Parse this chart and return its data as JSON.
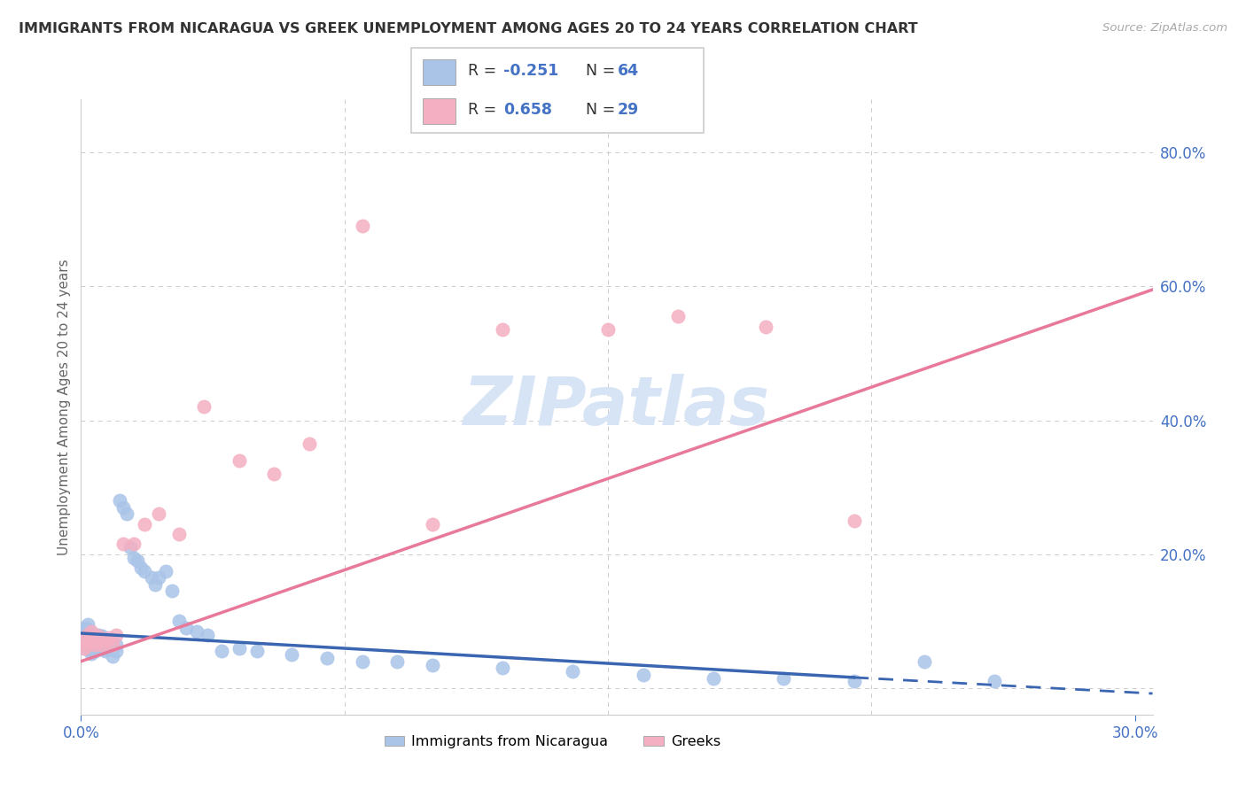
{
  "title": "IMMIGRANTS FROM NICARAGUA VS GREEK UNEMPLOYMENT AMONG AGES 20 TO 24 YEARS CORRELATION CHART",
  "source": "Source: ZipAtlas.com",
  "ylabel": "Unemployment Among Ages 20 to 24 years",
  "ytick_vals": [
    0.0,
    0.2,
    0.4,
    0.6,
    0.8
  ],
  "ytick_labels": [
    "",
    "20.0%",
    "40.0%",
    "60.0%",
    "80.0%"
  ],
  "xtick_vals": [
    0.0,
    0.3
  ],
  "xtick_labels": [
    "0.0%",
    "30.0%"
  ],
  "xlim": [
    0.0,
    0.305
  ],
  "ylim": [
    -0.04,
    0.88
  ],
  "legend_r_blue": "-0.251",
  "legend_n_blue": "64",
  "legend_r_pink": "0.658",
  "legend_n_pink": "29",
  "legend_label_blue": "Immigrants from Nicaragua",
  "legend_label_pink": "Greeks",
  "blue_dot_color": "#aac4e8",
  "pink_dot_color": "#f5afc2",
  "blue_line_color": "#3a65b0",
  "pink_line_color": "#e8799a",
  "r_n_color": "#4472c4",
  "title_color": "#333333",
  "axis_tick_color": "#4472c4",
  "source_color": "#aaaaaa",
  "grid_color": "#cccccc",
  "watermark_color": "#d6e4f5",
  "blue_line_x0": 0.0,
  "blue_line_y0": 0.082,
  "blue_line_x1_solid": 0.22,
  "blue_line_y1_solid": 0.016,
  "blue_line_x1_dash": 0.305,
  "blue_line_y1_dash": -0.008,
  "pink_line_x0": 0.0,
  "pink_line_y0": 0.04,
  "pink_line_x1": 0.305,
  "pink_line_y1": 0.595,
  "blue_x": [
    0.001,
    0.001,
    0.001,
    0.001,
    0.001,
    0.002,
    0.002,
    0.002,
    0.002,
    0.002,
    0.003,
    0.003,
    0.003,
    0.003,
    0.004,
    0.004,
    0.004,
    0.005,
    0.005,
    0.005,
    0.006,
    0.006,
    0.006,
    0.007,
    0.007,
    0.008,
    0.008,
    0.009,
    0.009,
    0.01,
    0.01,
    0.011,
    0.012,
    0.013,
    0.014,
    0.015,
    0.016,
    0.017,
    0.018,
    0.02,
    0.021,
    0.022,
    0.024,
    0.026,
    0.028,
    0.03,
    0.033,
    0.036,
    0.04,
    0.045,
    0.05,
    0.06,
    0.07,
    0.08,
    0.09,
    0.1,
    0.12,
    0.14,
    0.16,
    0.18,
    0.2,
    0.22,
    0.24,
    0.26
  ],
  "blue_y": [
    0.075,
    0.065,
    0.085,
    0.06,
    0.09,
    0.078,
    0.068,
    0.088,
    0.058,
    0.095,
    0.072,
    0.062,
    0.082,
    0.052,
    0.075,
    0.065,
    0.055,
    0.07,
    0.06,
    0.08,
    0.068,
    0.058,
    0.078,
    0.065,
    0.055,
    0.072,
    0.062,
    0.068,
    0.048,
    0.065,
    0.055,
    0.28,
    0.27,
    0.26,
    0.21,
    0.195,
    0.19,
    0.18,
    0.175,
    0.165,
    0.155,
    0.165,
    0.175,
    0.145,
    0.1,
    0.09,
    0.085,
    0.08,
    0.055,
    0.06,
    0.055,
    0.05,
    0.045,
    0.04,
    0.04,
    0.035,
    0.03,
    0.025,
    0.02,
    0.015,
    0.015,
    0.01,
    0.04,
    0.01
  ],
  "pink_x": [
    0.001,
    0.001,
    0.002,
    0.002,
    0.003,
    0.003,
    0.004,
    0.005,
    0.006,
    0.007,
    0.008,
    0.009,
    0.01,
    0.012,
    0.015,
    0.018,
    0.022,
    0.028,
    0.035,
    0.045,
    0.055,
    0.065,
    0.08,
    0.1,
    0.12,
    0.15,
    0.17,
    0.195,
    0.22
  ],
  "pink_y": [
    0.06,
    0.075,
    0.065,
    0.08,
    0.07,
    0.085,
    0.065,
    0.078,
    0.065,
    0.07,
    0.075,
    0.065,
    0.08,
    0.215,
    0.215,
    0.245,
    0.26,
    0.23,
    0.42,
    0.34,
    0.32,
    0.365,
    0.69,
    0.245,
    0.535,
    0.535,
    0.555,
    0.54,
    0.25
  ]
}
